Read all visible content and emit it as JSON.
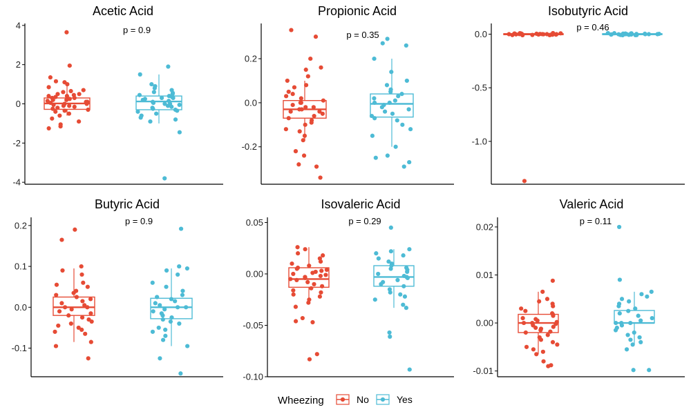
{
  "legend": {
    "title": "Wheezing",
    "items": [
      {
        "label": "No",
        "color": "#E64B35"
      },
      {
        "label": "Yes",
        "color": "#4DBBD5"
      }
    ]
  },
  "chart_data": [
    {
      "type": "box",
      "title": "Acetic Acid",
      "p_label": "p = 0.9",
      "ylim": [
        -4.1,
        4.1
      ],
      "yticks": [
        {
          "v": 4,
          "t": "4"
        },
        {
          "v": 2,
          "t": "2"
        },
        {
          "v": 0,
          "t": "0"
        },
        {
          "v": -2,
          "t": "-2"
        },
        {
          "v": -4,
          "t": "-4"
        }
      ],
      "groups": [
        {
          "name": "No",
          "color": "#E64B35",
          "box": {
            "lower_whisker": -0.6,
            "q1": -0.28,
            "median": 0.02,
            "q3": 0.3,
            "upper_whisker": 1.1
          },
          "points": [
            3.65,
            1.95,
            1.35,
            1.15,
            1.1,
            1.0,
            0.85,
            0.7,
            0.65,
            0.6,
            0.5,
            0.5,
            0.45,
            0.4,
            0.4,
            0.35,
            0.3,
            0.3,
            0.25,
            0.2,
            0.2,
            0.15,
            0.1,
            0.1,
            0.05,
            0.0,
            0.0,
            -0.05,
            -0.1,
            -0.1,
            -0.15,
            -0.2,
            -0.25,
            -0.3,
            -0.35,
            -0.4,
            -0.5,
            -0.6,
            -0.75,
            -0.9,
            -1.05,
            -1.15,
            -1.25
          ]
        },
        {
          "name": "Yes",
          "color": "#4DBBD5",
          "box": {
            "lower_whisker": -1.0,
            "q1": -0.3,
            "median": 0.12,
            "q3": 0.4,
            "upper_whisker": 1.5
          },
          "points": [
            1.9,
            1.5,
            1.0,
            0.9,
            0.8,
            0.7,
            0.6,
            0.55,
            0.5,
            0.45,
            0.4,
            0.35,
            0.3,
            0.3,
            0.25,
            0.2,
            0.15,
            0.1,
            0.05,
            0.0,
            0.0,
            -0.05,
            -0.1,
            -0.15,
            -0.2,
            -0.25,
            -0.3,
            -0.35,
            -0.4,
            -0.5,
            -0.6,
            -0.7,
            -0.8,
            -0.9,
            -1.45,
            -3.8
          ]
        }
      ]
    },
    {
      "type": "box",
      "title": "Propionic Acid",
      "p_label": "p = 0.35",
      "ylim": [
        -0.37,
        0.36
      ],
      "yticks": [
        {
          "v": 0.2,
          "t": "0.2"
        },
        {
          "v": 0.0,
          "t": "0.0"
        },
        {
          "v": -0.2,
          "t": "-0.2"
        }
      ],
      "groups": [
        {
          "name": "No",
          "color": "#E64B35",
          "box": {
            "lower_whisker": -0.17,
            "q1": -0.07,
            "median": -0.03,
            "q3": 0.01,
            "upper_whisker": 0.1
          },
          "points": [
            0.33,
            0.3,
            0.2,
            0.16,
            0.15,
            0.12,
            0.1,
            0.08,
            0.07,
            0.05,
            0.04,
            0.03,
            0.02,
            0.01,
            0.0,
            0.0,
            -0.01,
            -0.02,
            -0.02,
            -0.03,
            -0.03,
            -0.04,
            -0.04,
            -0.05,
            -0.06,
            -0.07,
            -0.08,
            -0.09,
            -0.1,
            -0.12,
            -0.13,
            -0.15,
            -0.17,
            -0.22,
            -0.24,
            -0.28,
            -0.29,
            -0.34
          ]
        },
        {
          "name": "Yes",
          "color": "#4DBBD5",
          "box": {
            "lower_whisker": -0.2,
            "q1": -0.065,
            "median": -0.005,
            "q3": 0.04,
            "upper_whisker": 0.2
          },
          "points": [
            0.29,
            0.27,
            0.26,
            0.2,
            0.14,
            0.1,
            0.08,
            0.06,
            0.05,
            0.04,
            0.03,
            0.02,
            0.01,
            0.0,
            0.0,
            -0.01,
            -0.02,
            -0.03,
            -0.04,
            -0.05,
            -0.06,
            -0.07,
            -0.08,
            -0.1,
            -0.12,
            -0.15,
            -0.2,
            -0.24,
            -0.25,
            -0.27,
            -0.29
          ]
        }
      ]
    },
    {
      "type": "box",
      "title": "Isobutyric Acid",
      "p_label": "p = 0.46",
      "ylim": [
        -1.4,
        0.1
      ],
      "yticks": [
        {
          "v": 0.0,
          "t": "0.0"
        },
        {
          "v": -0.5,
          "t": "-0.5"
        },
        {
          "v": -1.0,
          "t": "-1.0"
        }
      ],
      "groups": [
        {
          "name": "No",
          "color": "#E64B35",
          "box": {
            "lower_whisker": -0.01,
            "q1": -0.005,
            "median": 0.0,
            "q3": 0.005,
            "upper_whisker": 0.01
          },
          "points": [
            0.01,
            0.008,
            0.006,
            0.004,
            0.002,
            0.0,
            0.0,
            -0.002,
            -0.004,
            -0.006,
            -0.008,
            -0.01,
            0.005,
            -0.005,
            0.003,
            -0.003,
            0.0,
            0.007,
            -0.007,
            0.001,
            -0.001,
            0.009,
            -0.009,
            0.0,
            -1.37
          ]
        },
        {
          "name": "Yes",
          "color": "#4DBBD5",
          "box": {
            "lower_whisker": -0.01,
            "q1": -0.005,
            "median": 0.0,
            "q3": 0.005,
            "upper_whisker": 0.01
          },
          "points": [
            0.01,
            0.008,
            0.006,
            0.004,
            0.002,
            0.0,
            0.0,
            -0.002,
            -0.004,
            -0.006,
            -0.008,
            -0.01,
            0.005,
            -0.005,
            0.003,
            -0.003,
            0.0,
            0.007,
            -0.007,
            0.001,
            -0.001,
            0.009,
            -0.009,
            0.0
          ]
        }
      ]
    },
    {
      "type": "box",
      "title": "Butyric Acid",
      "p_label": "p = 0.9",
      "ylim": [
        -0.17,
        0.22
      ],
      "yticks": [
        {
          "v": 0.2,
          "t": "0.2"
        },
        {
          "v": 0.1,
          "t": "0.1"
        },
        {
          "v": 0.0,
          "t": "0.0"
        },
        {
          "v": -0.1,
          "t": "-0.1"
        }
      ],
      "groups": [
        {
          "name": "No",
          "color": "#E64B35",
          "box": {
            "lower_whisker": -0.085,
            "q1": -0.02,
            "median": 0.0,
            "q3": 0.025,
            "upper_whisker": 0.095
          },
          "points": [
            0.19,
            0.165,
            0.1,
            0.09,
            0.08,
            0.06,
            0.055,
            0.05,
            0.04,
            0.035,
            0.03,
            0.025,
            0.02,
            0.015,
            0.01,
            0.005,
            0.0,
            0.0,
            -0.005,
            -0.01,
            -0.015,
            -0.02,
            -0.025,
            -0.03,
            -0.035,
            -0.04,
            -0.045,
            -0.05,
            -0.055,
            -0.06,
            -0.065,
            -0.085,
            -0.095,
            -0.125
          ]
        },
        {
          "name": "Yes",
          "color": "#4DBBD5",
          "box": {
            "lower_whisker": -0.095,
            "q1": -0.028,
            "median": 0.0,
            "q3": 0.022,
            "upper_whisker": 0.095
          },
          "points": [
            0.192,
            0.1,
            0.095,
            0.09,
            0.08,
            0.06,
            0.05,
            0.04,
            0.03,
            0.025,
            0.02,
            0.015,
            0.01,
            0.005,
            0.0,
            0.0,
            -0.005,
            -0.01,
            -0.015,
            -0.02,
            -0.025,
            -0.03,
            -0.035,
            -0.04,
            -0.05,
            -0.055,
            -0.06,
            -0.07,
            -0.08,
            -0.095,
            -0.125,
            -0.162
          ]
        }
      ]
    },
    {
      "type": "box",
      "title": "Isovaleric Acid",
      "p_label": "p = 0.29",
      "ylim": [
        -0.1,
        0.055
      ],
      "yticks": [
        {
          "v": 0.05,
          "t": "0.05"
        },
        {
          "v": 0.0,
          "t": "0.00"
        },
        {
          "v": -0.05,
          "t": "-0.05"
        },
        {
          "v": -0.1,
          "t": "-0.10"
        }
      ],
      "groups": [
        {
          "name": "No",
          "color": "#E64B35",
          "box": {
            "lower_whisker": -0.028,
            "q1": -0.013,
            "median": -0.005,
            "q3": 0.006,
            "upper_whisker": 0.026
          },
          "points": [
            0.026,
            0.024,
            0.02,
            0.018,
            0.015,
            0.012,
            0.01,
            0.008,
            0.006,
            0.005,
            0.004,
            0.003,
            0.002,
            0.001,
            0.0,
            -0.001,
            -0.002,
            -0.003,
            -0.004,
            -0.005,
            -0.006,
            -0.008,
            -0.01,
            -0.012,
            -0.014,
            -0.016,
            -0.018,
            -0.02,
            -0.022,
            -0.025,
            -0.028,
            -0.032,
            -0.043,
            -0.046,
            -0.047,
            -0.078,
            -0.083
          ]
        },
        {
          "name": "Yes",
          "color": "#4DBBD5",
          "box": {
            "lower_whisker": -0.033,
            "q1": -0.012,
            "median": -0.003,
            "q3": 0.008,
            "upper_whisker": 0.024
          },
          "points": [
            0.045,
            0.024,
            0.022,
            0.02,
            0.018,
            0.015,
            0.012,
            0.01,
            0.008,
            0.006,
            0.005,
            0.004,
            0.002,
            0.0,
            -0.002,
            -0.003,
            -0.004,
            -0.006,
            -0.008,
            -0.01,
            -0.012,
            -0.015,
            -0.018,
            -0.02,
            -0.022,
            -0.025,
            -0.03,
            -0.033,
            -0.057,
            -0.061,
            -0.093
          ]
        }
      ]
    },
    {
      "type": "box",
      "title": "Valeric Acid",
      "p_label": "p = 0.11",
      "ylim": [
        -0.0112,
        0.022
      ],
      "yticks": [
        {
          "v": 0.02,
          "t": "0.02"
        },
        {
          "v": 0.01,
          "t": "0.01"
        },
        {
          "v": 0.0,
          "t": "0.00"
        },
        {
          "v": -0.01,
          "t": "-0.01"
        }
      ],
      "groups": [
        {
          "name": "No",
          "color": "#E64B35",
          "box": {
            "lower_whisker": -0.0065,
            "q1": -0.002,
            "median": 0.0,
            "q3": 0.0018,
            "upper_whisker": 0.0065
          },
          "points": [
            0.0088,
            0.0065,
            0.005,
            0.0045,
            0.004,
            0.0035,
            0.003,
            0.0025,
            0.002,
            0.0018,
            0.0015,
            0.001,
            0.0008,
            0.0005,
            0.0002,
            0.0,
            0.0,
            -0.0002,
            -0.0005,
            -0.0008,
            -0.001,
            -0.0012,
            -0.0015,
            -0.0018,
            -0.002,
            -0.0025,
            -0.003,
            -0.0035,
            -0.004,
            -0.0045,
            -0.005,
            -0.0055,
            -0.006,
            -0.0065,
            -0.008,
            -0.0088,
            -0.009
          ]
        },
        {
          "name": "Yes",
          "color": "#4DBBD5",
          "box": {
            "lower_whisker": -0.0045,
            "q1": 0.0,
            "median": 0.0,
            "q3": 0.0026,
            "upper_whisker": 0.0065
          },
          "points": [
            0.02,
            0.009,
            0.0065,
            0.006,
            0.0055,
            0.005,
            0.0045,
            0.004,
            0.0035,
            0.003,
            0.0025,
            0.002,
            0.0015,
            0.001,
            0.0005,
            0.0,
            0.0,
            0.0,
            -0.0005,
            -0.001,
            -0.0015,
            -0.002,
            -0.0025,
            -0.003,
            -0.0035,
            -0.004,
            -0.0045,
            -0.0055,
            -0.0098,
            -0.0098
          ]
        }
      ]
    }
  ]
}
